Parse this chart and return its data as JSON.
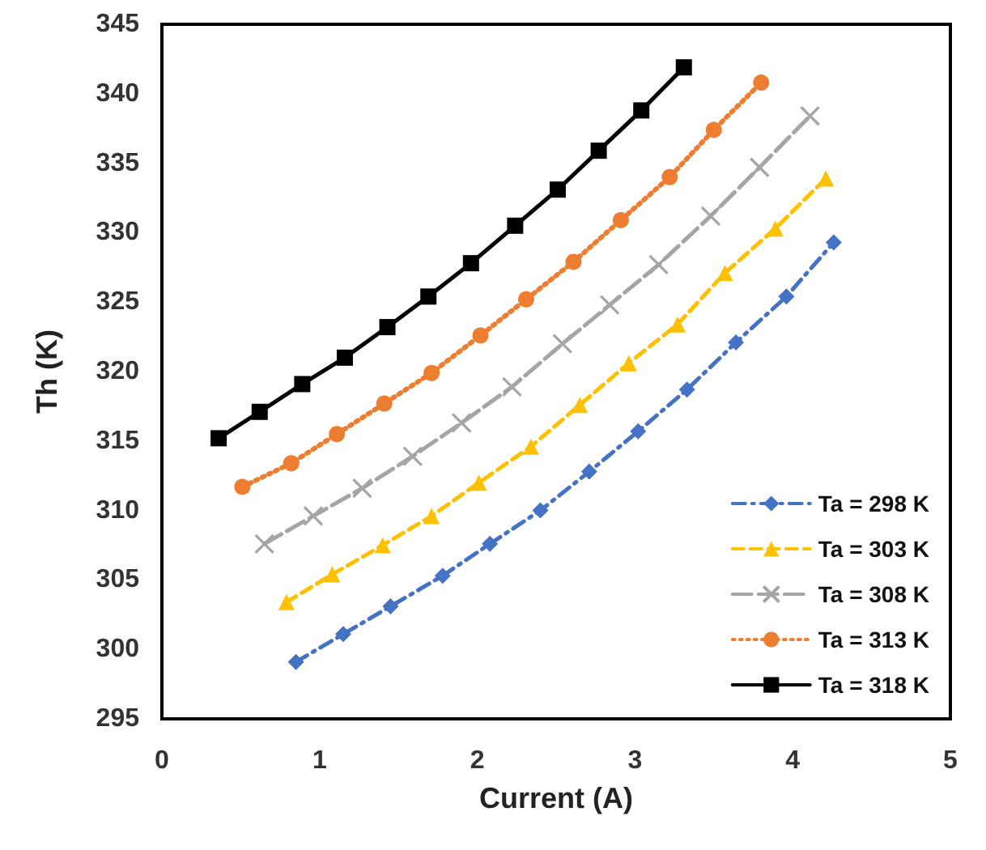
{
  "chart_data": {
    "type": "line",
    "xlabel": "Current (A)",
    "ylabel": "Th (K)",
    "xlim": [
      0,
      5
    ],
    "xticks": [
      0,
      1,
      2,
      3,
      4,
      5
    ],
    "ylim": [
      295,
      345
    ],
    "yticks": [
      295,
      300,
      305,
      310,
      315,
      320,
      325,
      330,
      335,
      340,
      345
    ],
    "grid": false,
    "legend": "bottom right",
    "series": [
      {
        "name": "Ta = 298 K",
        "color": "#4472c4",
        "marker": "diamond",
        "line_style": "dashdot",
        "x": [
          0.85,
          1.15,
          1.45,
          1.78,
          2.08,
          2.4,
          2.71,
          3.02,
          3.33,
          3.64,
          3.96,
          4.26
        ],
        "values": [
          299.1,
          301.1,
          303.1,
          305.3,
          307.6,
          310.0,
          312.8,
          315.7,
          318.7,
          322.1,
          325.4,
          329.3
        ]
      },
      {
        "name": "Ta = 303 K",
        "color": "#ffc000",
        "marker": "triangle",
        "line_style": "dashed",
        "x": [
          0.79,
          1.08,
          1.4,
          1.71,
          2.01,
          2.34,
          2.65,
          2.96,
          3.27,
          3.57,
          3.89,
          4.21
        ],
        "values": [
          303.4,
          305.4,
          307.5,
          309.6,
          312.0,
          314.6,
          317.6,
          320.6,
          323.4,
          327.1,
          330.3,
          333.9
        ]
      },
      {
        "name": "Ta = 308 K",
        "color": "#a5a5a5",
        "marker": "cross",
        "line_style": "longdash",
        "x": [
          0.65,
          0.96,
          1.27,
          1.59,
          1.9,
          2.22,
          2.54,
          2.84,
          3.15,
          3.48,
          3.79,
          4.11
        ],
        "values": [
          307.6,
          309.6,
          311.6,
          313.9,
          316.3,
          318.9,
          322.0,
          324.8,
          327.7,
          331.2,
          334.7,
          338.4
        ]
      },
      {
        "name": "Ta = 313 K",
        "color": "#ed7d31",
        "marker": "circle",
        "line_style": "dotted",
        "x": [
          0.51,
          0.82,
          1.11,
          1.41,
          1.71,
          2.02,
          2.31,
          2.61,
          2.91,
          3.22,
          3.5,
          3.8
        ],
        "values": [
          311.7,
          313.4,
          315.5,
          317.7,
          319.9,
          322.6,
          325.2,
          327.9,
          330.9,
          334.0,
          337.4,
          340.8
        ]
      },
      {
        "name": "Ta = 318 K",
        "color": "#000000",
        "marker": "square",
        "line_style": "solid",
        "x": [
          0.36,
          0.62,
          0.89,
          1.16,
          1.43,
          1.69,
          1.96,
          2.24,
          2.51,
          2.77,
          3.04,
          3.31
        ],
        "values": [
          315.2,
          317.1,
          319.1,
          321.0,
          323.2,
          325.4,
          327.8,
          330.5,
          333.1,
          335.9,
          338.8,
          341.9
        ]
      }
    ]
  }
}
